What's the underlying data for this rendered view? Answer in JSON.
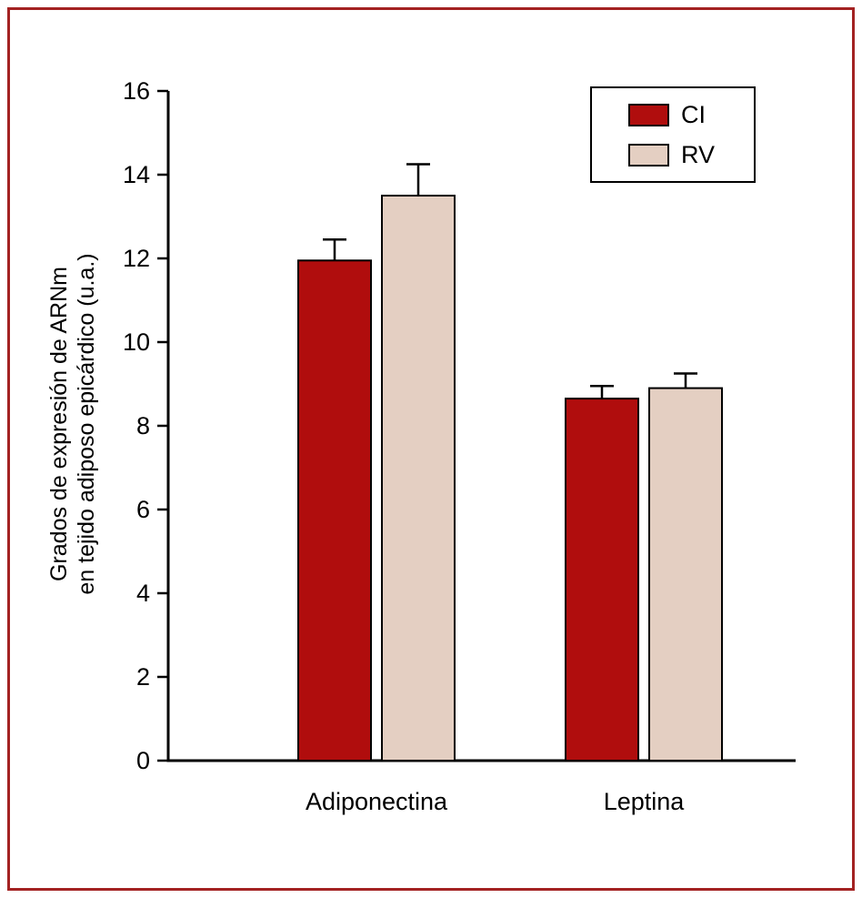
{
  "chart_data": {
    "type": "bar",
    "categories": [
      "Adiponectina",
      "Leptina"
    ],
    "series": [
      {
        "name": "CI",
        "color": "#b00d0d",
        "values": [
          11.95,
          8.65
        ],
        "errors": [
          0.5,
          0.3
        ]
      },
      {
        "name": "RV",
        "color": "#e4cfc2",
        "values": [
          13.5,
          8.9
        ],
        "errors": [
          0.75,
          0.35
        ]
      }
    ],
    "ylabel_lines": [
      "Grados de expresión de ARNm",
      "en tejido adiposo epicárdico (u.a.)"
    ],
    "xlabel": "",
    "title": "",
    "ylim": [
      0,
      16
    ],
    "ytick_step": 2,
    "ytick_labels": [
      "0",
      "2",
      "4",
      "6",
      "8",
      "10",
      "12",
      "14",
      "16"
    ],
    "legend_position": "top-right",
    "grid": false
  },
  "frame_color": "#a32222",
  "axis_color": "#000000"
}
